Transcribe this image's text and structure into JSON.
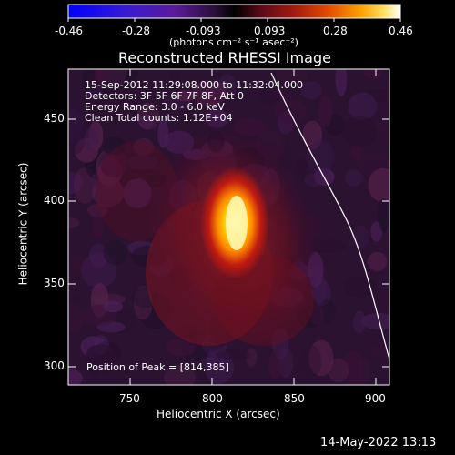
{
  "colorbar": {
    "tick_labels": [
      "-0.46",
      "-0.28",
      "-0.093",
      "0.093",
      "0.28",
      "0.46"
    ],
    "units_label": "(photons cm⁻² s⁻¹ asec⁻²)"
  },
  "plot": {
    "title": "Reconstructed RHESSI Image",
    "info_lines": [
      "15-Sep-2012 11:29:08.000 to 11:32:04.000",
      "Detectors: 3F 5F 6F 7F 8F, Att 0",
      "Energy Range: 3.0 - 6.0 keV",
      "Clean     Total counts: 1.12E+04"
    ],
    "peak_text": "Position of Peak = [814,385]",
    "xlabel": "Heliocentric X (arcsec)",
    "ylabel": "Heliocentric Y (arcsec)",
    "x_ticks": [
      "750",
      "800",
      "850",
      "900"
    ],
    "y_ticks": [
      "300",
      "350",
      "400",
      "450"
    ]
  },
  "footer": {
    "timestamp": "14-May-2022 13:13"
  }
}
